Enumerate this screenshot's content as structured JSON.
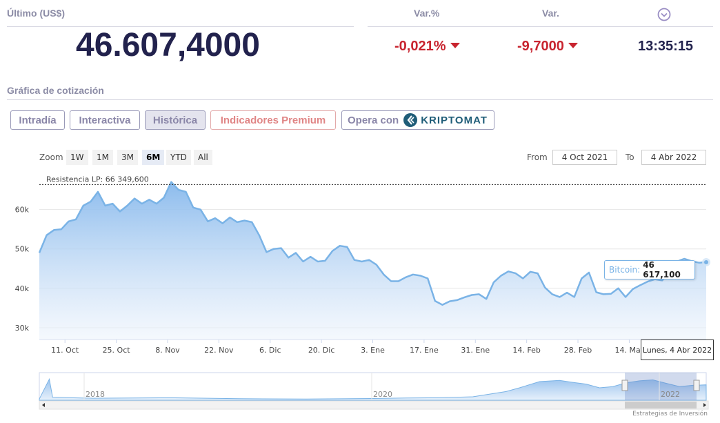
{
  "header": {
    "ultimo_label": "Último (US$)",
    "price": "46.607,4000",
    "var_pct_label": "Var.%",
    "var_label": "Var.",
    "var_pct_value": "-0,021%",
    "var_value": "-9,7000",
    "time": "13:35:15",
    "clock_icon": "chevron-down-circle-icon"
  },
  "section_title": "Gráfica de cotización",
  "tabs": [
    {
      "label": "Intradía"
    },
    {
      "label": "Interactiva"
    },
    {
      "label": "Histórica"
    },
    {
      "label": "Indicadores Premium"
    },
    {
      "label": "Opera con",
      "brand": "KRIPTOMAT"
    }
  ],
  "zoom": {
    "label": "Zoom",
    "buttons": [
      "1W",
      "1M",
      "3M",
      "6M",
      "YTD",
      "All"
    ],
    "selected": "6M"
  },
  "range": {
    "from_label": "From",
    "from_value": "4 Oct 2021",
    "to_label": "To",
    "to_value": "4 Abr 2022"
  },
  "tooltip": {
    "series": "Bitcoin:",
    "value": "46 617,100",
    "date": "Lunes, 4 Abr 2022"
  },
  "credit": "Estrategias de Inversión",
  "colors": {
    "line": "#7ab3e6",
    "fill_top": "#8fbeee",
    "negative": "#c8242f",
    "price": "#22224d"
  },
  "chart_data": {
    "type": "area",
    "title": "",
    "xlabel": "",
    "ylabel": "",
    "ylim": [
      27000,
      68000
    ],
    "y_ticks": [
      "30k",
      "40k",
      "50k",
      "60k"
    ],
    "x_ticks": [
      "11. Oct",
      "25. Oct",
      "8. Nov",
      "22. Nov",
      "6. Dic",
      "20. Dic",
      "3. Ene",
      "17. Ene",
      "31. Ene",
      "14. Feb",
      "28. Feb",
      "14. Mar"
    ],
    "grid": true,
    "annotation": {
      "label": "Resistencia LP: 66 349,600",
      "value": 66349.6
    },
    "series": [
      {
        "name": "Bitcoin",
        "x": [
          "2021-10-04",
          "2021-10-06",
          "2021-10-08",
          "2021-10-10",
          "2021-10-12",
          "2021-10-14",
          "2021-10-16",
          "2021-10-18",
          "2021-10-20",
          "2021-10-22",
          "2021-10-24",
          "2021-10-26",
          "2021-10-28",
          "2021-10-30",
          "2021-11-01",
          "2021-11-03",
          "2021-11-05",
          "2021-11-07",
          "2021-11-09",
          "2021-11-11",
          "2021-11-13",
          "2021-11-15",
          "2021-11-17",
          "2021-11-19",
          "2021-11-21",
          "2021-11-23",
          "2021-11-25",
          "2021-11-27",
          "2021-11-29",
          "2021-12-01",
          "2021-12-03",
          "2021-12-05",
          "2021-12-07",
          "2021-12-09",
          "2021-12-11",
          "2021-12-13",
          "2021-12-15",
          "2021-12-17",
          "2021-12-19",
          "2021-12-21",
          "2021-12-23",
          "2021-12-25",
          "2021-12-27",
          "2021-12-29",
          "2021-12-31",
          "2022-01-02",
          "2022-01-04",
          "2022-01-06",
          "2022-01-08",
          "2022-01-10",
          "2022-01-12",
          "2022-01-14",
          "2022-01-16",
          "2022-01-18",
          "2022-01-20",
          "2022-01-22",
          "2022-01-24",
          "2022-01-26",
          "2022-01-28",
          "2022-01-30",
          "2022-02-01",
          "2022-02-03",
          "2022-02-05",
          "2022-02-07",
          "2022-02-09",
          "2022-02-11",
          "2022-02-13",
          "2022-02-15",
          "2022-02-17",
          "2022-02-19",
          "2022-02-21",
          "2022-02-23",
          "2022-02-25",
          "2022-02-27",
          "2022-03-01",
          "2022-03-03",
          "2022-03-05",
          "2022-03-07",
          "2022-03-09",
          "2022-03-11",
          "2022-03-13",
          "2022-03-15",
          "2022-03-17",
          "2022-03-19",
          "2022-03-21",
          "2022-03-23",
          "2022-03-25",
          "2022-03-27",
          "2022-03-29",
          "2022-03-31",
          "2022-04-02",
          "2022-04-04"
        ],
        "values": [
          49000,
          53500,
          54800,
          55000,
          57000,
          57500,
          61000,
          62000,
          64500,
          61000,
          61500,
          59500,
          61000,
          62800,
          61500,
          62500,
          61500,
          63000,
          67000,
          65000,
          64500,
          60500,
          60000,
          57000,
          57800,
          56500,
          58000,
          56800,
          57200,
          56800,
          53500,
          49200,
          50000,
          50200,
          47800,
          49000,
          46800,
          48000,
          46800,
          47000,
          49500,
          50800,
          50500,
          47200,
          46800,
          47200,
          46000,
          43500,
          41800,
          41800,
          42800,
          43500,
          43200,
          42500,
          36800,
          35800,
          36700,
          37000,
          37700,
          38300,
          38500,
          37300,
          41500,
          43200,
          44300,
          43800,
          42500,
          44200,
          43800,
          40200,
          38500,
          37800,
          38900,
          37800,
          42500,
          44000,
          39000,
          38500,
          38600,
          40000,
          37800,
          39800,
          40800,
          41700,
          42300,
          42000,
          44000,
          46800,
          47500,
          46900,
          46500,
          46617.1
        ]
      }
    ],
    "navigator": {
      "years": [
        "2018",
        "2020",
        "2022"
      ]
    }
  }
}
